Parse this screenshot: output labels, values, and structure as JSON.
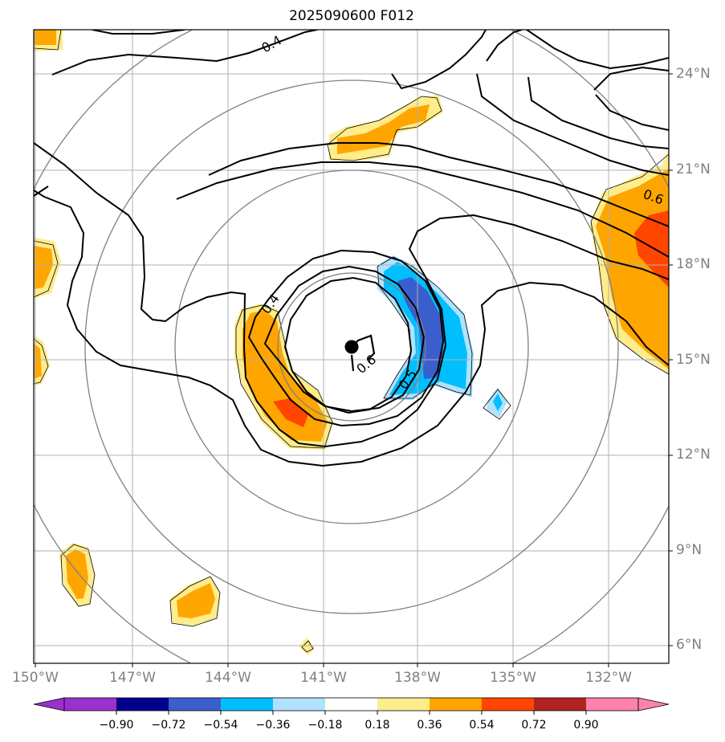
{
  "title": "2025090600 F012",
  "latitude_labels": [
    "24°N",
    "21°N",
    "18°N",
    "15°N",
    "12°N",
    "9°N",
    "6°N"
  ],
  "longitude_labels": [
    "150°W",
    "147°W",
    "144°W",
    "141°W",
    "138°W",
    "135°W",
    "132°W"
  ],
  "contour_labels": [
    "0.4",
    "0.4",
    "0.6",
    "0.5",
    "0.6"
  ],
  "colorbar": {
    "tick_labels": [
      "−0.90",
      "−0.72",
      "−0.54",
      "−0.36",
      "−0.18",
      "0.18",
      "0.36",
      "0.54",
      "0.72",
      "0.90"
    ],
    "colors": [
      "#9932cc",
      "#00008b",
      "#3a5fcd",
      "#00bfff",
      "#b0e2ff",
      "#ffffff",
      "#ffec8b",
      "#ffa500",
      "#ff4500",
      "#b22222",
      "#ff82ab"
    ]
  },
  "map_colors": {
    "grid": "#b0b0b0",
    "range_rings": "#808080",
    "contours": "#000000",
    "storm_center": "#000000"
  }
}
